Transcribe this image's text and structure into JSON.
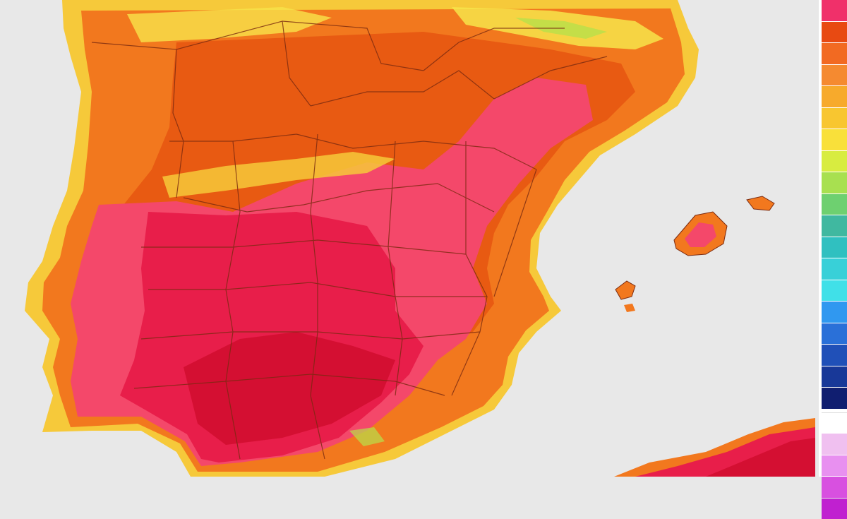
{
  "map": {
    "palette": {
      "sea": "#e8e8e8",
      "coast_yellow": "#f6c93a",
      "land_orange": "#f2781e",
      "land_dark_orange": "#e85a12",
      "land_pink": "#f4486a",
      "land_red": "#e81e4a",
      "land_deep_red": "#d40f32",
      "mountain_yellow": "#f7e44a",
      "mountain_green": "#b8e04a",
      "border": "#7a2a10"
    },
    "islands": [
      "mallorca",
      "menorca",
      "ibiza",
      "formentera"
    ]
  },
  "legend": {
    "swatches": [
      "#f0306a",
      "#e84a12",
      "#f26a22",
      "#f58a30",
      "#f7aa2c",
      "#f8c630",
      "#f9e03a",
      "#d8ec40",
      "#a8e050",
      "#6ed070",
      "#40b8a0",
      "#30c0c0",
      "#38d0d8",
      "#40e0e8",
      "#3098f0",
      "#2a70d8",
      "#2050b8",
      "#183898",
      "#101e70",
      "#ffffff",
      "#f0c0f0",
      "#e890f0",
      "#d850e0",
      "#c020d0"
    ]
  }
}
